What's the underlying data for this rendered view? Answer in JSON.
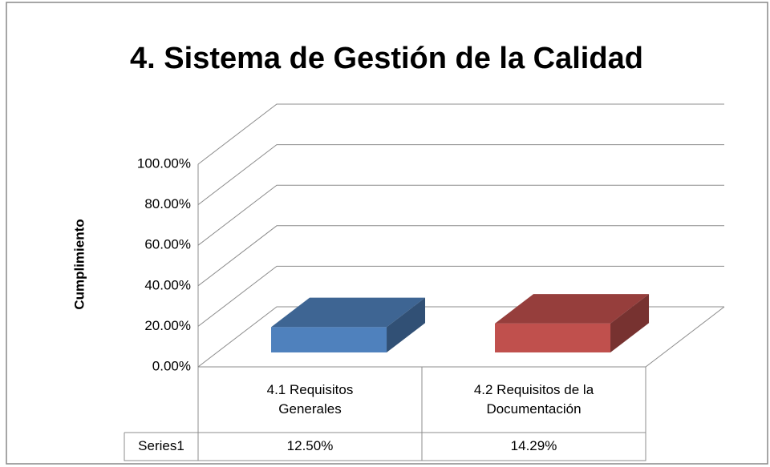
{
  "chart_data": {
    "type": "bar",
    "title": "4. Sistema de Gestión de la Calidad",
    "y_label": "Cumplimiento",
    "categories": [
      "4.1 Requisitos Generales",
      "4.2 Requisitos de la Documentación"
    ],
    "series": [
      {
        "name": "Series1",
        "colors": [
          "#4f81bd",
          "#c0504d"
        ],
        "values": [
          12.5,
          14.29
        ],
        "value_labels": [
          "12.50%",
          "14.29%"
        ]
      }
    ],
    "ylim": [
      0,
      100
    ],
    "yticks": [
      {
        "value": 0,
        "label": "0.00%"
      },
      {
        "value": 20,
        "label": "20.00%"
      },
      {
        "value": 40,
        "label": "40.00%"
      },
      {
        "value": 60,
        "label": "60.00%"
      },
      {
        "value": 80,
        "label": "80.00%"
      },
      {
        "value": 100,
        "label": "100.00%"
      }
    ],
    "grid": true
  }
}
